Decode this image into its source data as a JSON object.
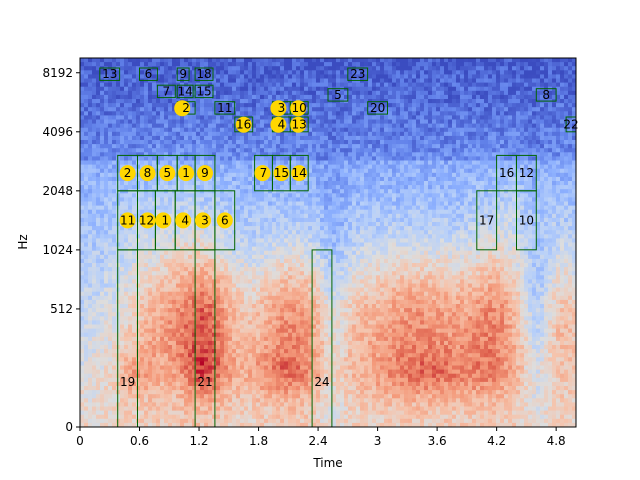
{
  "chart_data": {
    "type": "heatmap",
    "xlabel": "Time",
    "ylabel": "Hz",
    "x_ticks": [
      "0",
      "0.6",
      "1.2",
      "1.8",
      "2.4",
      "3",
      "3.6",
      "4.2",
      "4.8"
    ],
    "y_ticks": [
      "0",
      "512",
      "1024",
      "2048",
      "4096",
      "8192"
    ],
    "xlim": [
      0,
      5.0
    ],
    "ylim_level": [
      0,
      6.25
    ],
    "colormap": "coolwarm",
    "colors": {
      "box": "#006400",
      "marker": "#FFD700",
      "background": "#ffffff"
    },
    "boxes": [
      {
        "label": "13",
        "x0": 0.2,
        "x1": 0.4,
        "y0": 5.87,
        "y1": 6.08
      },
      {
        "label": "6",
        "x0": 0.6,
        "x1": 0.78,
        "y0": 5.87,
        "y1": 6.08
      },
      {
        "label": "9",
        "x0": 0.98,
        "x1": 1.1,
        "y0": 5.87,
        "y1": 6.08
      },
      {
        "label": "18",
        "x0": 1.16,
        "x1": 1.34,
        "y0": 5.87,
        "y1": 6.08
      },
      {
        "label": "23",
        "x0": 2.7,
        "x1": 2.9,
        "y0": 5.87,
        "y1": 6.08
      },
      {
        "label": "7",
        "x0": 0.78,
        "x1": 0.96,
        "y0": 5.58,
        "y1": 5.79
      },
      {
        "label": "14",
        "x0": 0.98,
        "x1": 1.14,
        "y0": 5.58,
        "y1": 5.79
      },
      {
        "label": "15",
        "x0": 1.16,
        "x1": 1.34,
        "y0": 5.58,
        "y1": 5.79
      },
      {
        "label": "5",
        "x0": 2.5,
        "x1": 2.7,
        "y0": 5.52,
        "y1": 5.73
      },
      {
        "label": "8",
        "x0": 4.6,
        "x1": 4.8,
        "y0": 5.52,
        "y1": 5.73
      },
      {
        "label": "11",
        "x0": 1.36,
        "x1": 1.56,
        "y0": 5.3,
        "y1": 5.51
      },
      {
        "label": "20",
        "x0": 2.9,
        "x1": 3.1,
        "y0": 5.3,
        "y1": 5.51
      },
      {
        "label": "22",
        "x0": 4.9,
        "x1": 5.0,
        "y0": 5.0,
        "y1": 5.25
      },
      {
        "label": "2",
        "x0": 0.98,
        "x1": 1.16,
        "y0": 5.3,
        "y1": 5.51
      },
      {
        "label": "3",
        "x0": 1.94,
        "x1": 2.12,
        "y0": 5.3,
        "y1": 5.51
      },
      {
        "label": "10",
        "x0": 2.12,
        "x1": 2.3,
        "y0": 5.3,
        "y1": 5.51
      },
      {
        "label": "16",
        "x0": 1.56,
        "x1": 1.74,
        "y0": 5.0,
        "y1": 5.25
      },
      {
        "label": "4",
        "x0": 1.94,
        "x1": 2.12,
        "y0": 5.0,
        "y1": 5.25
      },
      {
        "label": "13",
        "x0": 2.12,
        "x1": 2.3,
        "y0": 5.0,
        "y1": 5.25
      },
      {
        "label": "2",
        "x0": 0.38,
        "x1": 0.58,
        "y0": 4.0,
        "y1": 4.6
      },
      {
        "label": "8",
        "x0": 0.58,
        "x1": 0.78,
        "y0": 4.0,
        "y1": 4.6
      },
      {
        "label": "5",
        "x0": 0.78,
        "x1": 0.98,
        "y0": 4.0,
        "y1": 4.6
      },
      {
        "label": "1",
        "x0": 0.98,
        "x1": 1.16,
        "y0": 4.0,
        "y1": 4.6
      },
      {
        "label": "9",
        "x0": 1.16,
        "x1": 1.36,
        "y0": 4.0,
        "y1": 4.6
      },
      {
        "label": "7",
        "x0": 1.76,
        "x1": 1.94,
        "y0": 4.0,
        "y1": 4.6
      },
      {
        "label": "15",
        "x0": 1.94,
        "x1": 2.12,
        "y0": 4.0,
        "y1": 4.6
      },
      {
        "label": "14",
        "x0": 2.12,
        "x1": 2.3,
        "y0": 4.0,
        "y1": 4.6
      },
      {
        "label": "16",
        "x0": 4.2,
        "x1": 4.4,
        "y0": 4.0,
        "y1": 4.6
      },
      {
        "label": "12",
        "x0": 4.4,
        "x1": 4.6,
        "y0": 4.0,
        "y1": 4.6
      },
      {
        "label": "11",
        "x0": 0.38,
        "x1": 0.58,
        "y0": 3.0,
        "y1": 4.0
      },
      {
        "label": "12",
        "x0": 0.58,
        "x1": 0.76,
        "y0": 3.0,
        "y1": 4.0
      },
      {
        "label": "1",
        "x0": 0.76,
        "x1": 0.96,
        "y0": 3.0,
        "y1": 4.0
      },
      {
        "label": "4",
        "x0": 0.96,
        "x1": 1.16,
        "y0": 3.0,
        "y1": 4.0
      },
      {
        "label": "3",
        "x0": 1.16,
        "x1": 1.36,
        "y0": 3.0,
        "y1": 4.0
      },
      {
        "label": "6",
        "x0": 1.36,
        "x1": 1.56,
        "y0": 3.0,
        "y1": 4.0
      },
      {
        "label": "17",
        "x0": 4.0,
        "x1": 4.2,
        "y0": 3.0,
        "y1": 4.0
      },
      {
        "label": "10",
        "x0": 4.4,
        "x1": 4.6,
        "y0": 3.0,
        "y1": 4.0
      },
      {
        "label": "19",
        "x0": 0.38,
        "x1": 0.58,
        "y0": 0.0,
        "y1": 3.0
      },
      {
        "label": "21",
        "x0": 1.16,
        "x1": 1.36,
        "y0": 0.0,
        "y1": 3.0
      },
      {
        "label": "24",
        "x0": 2.34,
        "x1": 2.54,
        "y0": 0.0,
        "y1": 3.0
      }
    ],
    "markers": [
      {
        "label": "2",
        "x": 1.03,
        "y": 5.4
      },
      {
        "label": "3",
        "x": 2.0,
        "y": 5.4
      },
      {
        "label": "10",
        "x": 2.2,
        "y": 5.4
      },
      {
        "label": "16",
        "x": 1.65,
        "y": 5.12
      },
      {
        "label": "4",
        "x": 2.0,
        "y": 5.12
      },
      {
        "label": "13",
        "x": 2.2,
        "y": 5.12
      },
      {
        "label": "2",
        "x": 0.48,
        "y": 4.3
      },
      {
        "label": "8",
        "x": 0.68,
        "y": 4.3
      },
      {
        "label": "5",
        "x": 0.88,
        "y": 4.3
      },
      {
        "label": "1",
        "x": 1.07,
        "y": 4.3
      },
      {
        "label": "9",
        "x": 1.26,
        "y": 4.3
      },
      {
        "label": "7",
        "x": 1.84,
        "y": 4.3
      },
      {
        "label": "15",
        "x": 2.03,
        "y": 4.3
      },
      {
        "label": "14",
        "x": 2.21,
        "y": 4.3
      },
      {
        "label": "11",
        "x": 0.48,
        "y": 3.5
      },
      {
        "label": "12",
        "x": 0.68,
        "y": 3.5
      },
      {
        "label": "1",
        "x": 0.84,
        "y": 3.5
      },
      {
        "label": "4",
        "x": 1.04,
        "y": 3.5
      },
      {
        "label": "3",
        "x": 1.24,
        "y": 3.5
      },
      {
        "label": "6",
        "x": 1.46,
        "y": 3.5
      }
    ]
  }
}
